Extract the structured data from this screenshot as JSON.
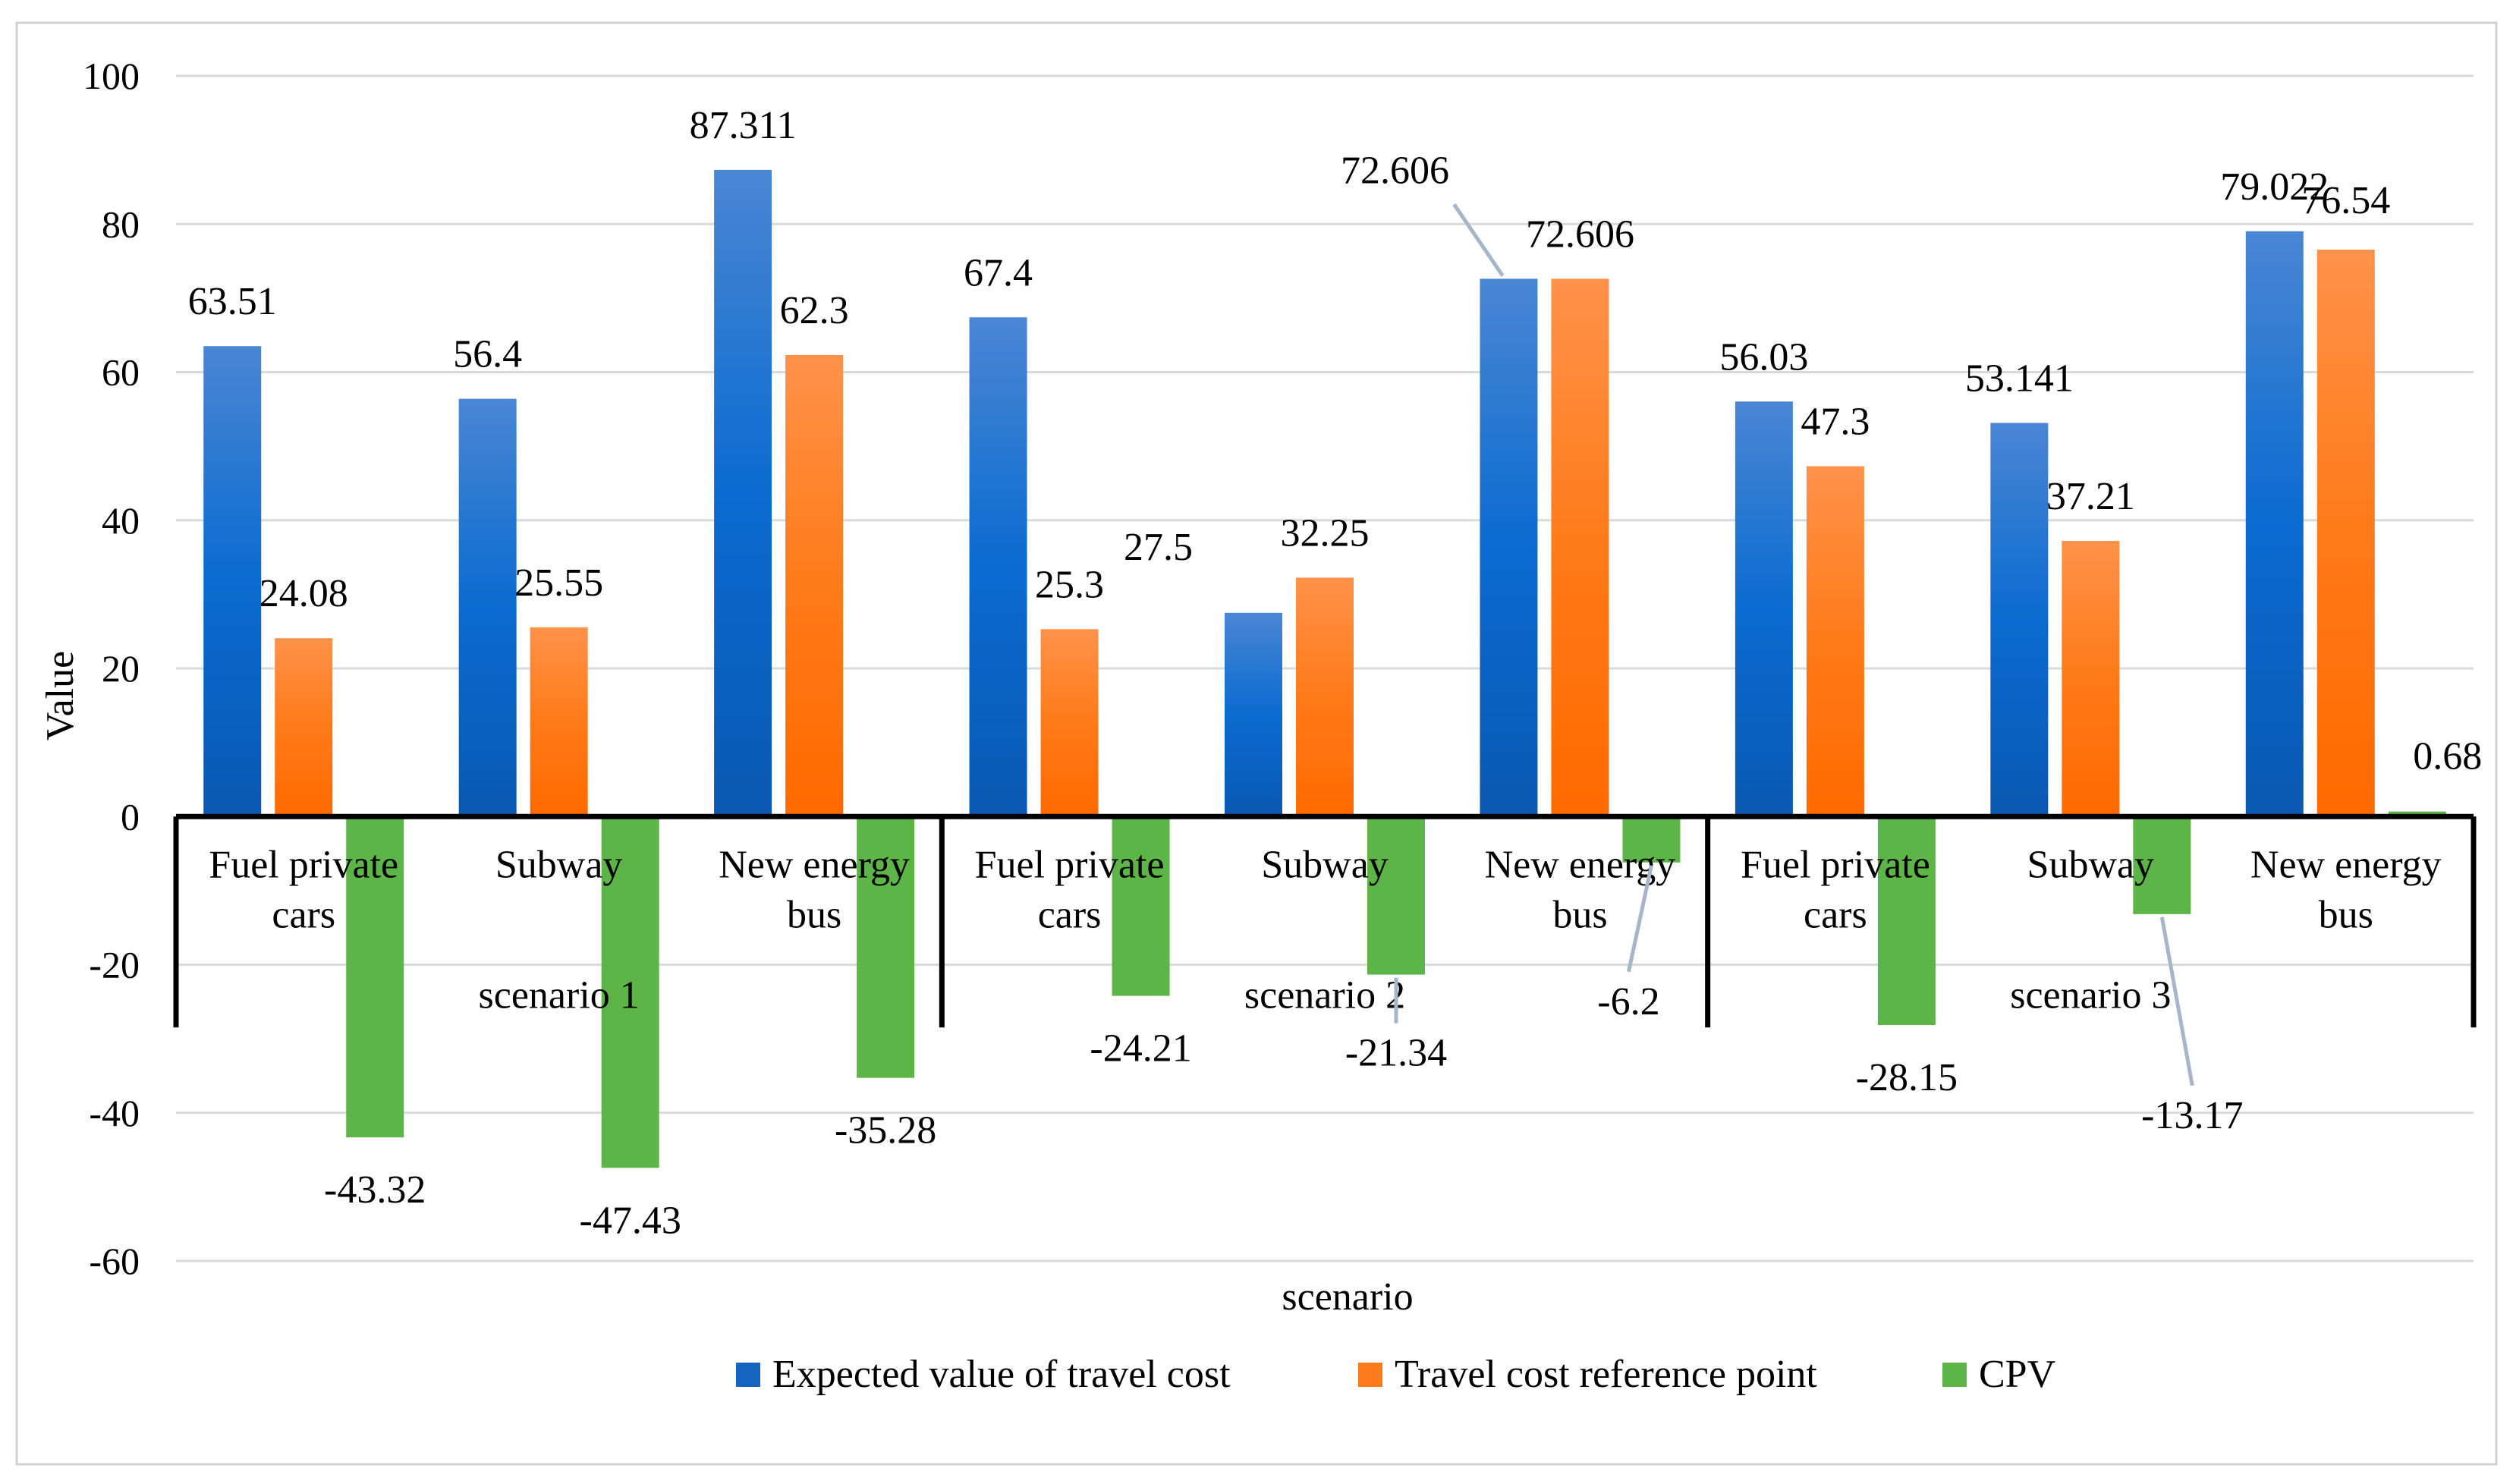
{
  "chart_data": {
    "type": "bar",
    "ylabel": "Value",
    "xlabel": "scenario",
    "ylim": [
      -60,
      100
    ],
    "yticks": [
      100,
      80,
      60,
      40,
      20,
      0,
      -20,
      -40,
      -60
    ],
    "grid": true,
    "legend_position": "bottom",
    "groups": [
      {
        "name": "scenario 1",
        "categories": [
          "Fuel private cars",
          "Subway",
          "New energy bus"
        ]
      },
      {
        "name": "scenario 2",
        "categories": [
          "Fuel private cars",
          "Subway",
          "New energy bus"
        ]
      },
      {
        "name": "scenario 3",
        "categories": [
          "Fuel private cars",
          "Subway",
          "New energy bus"
        ]
      }
    ],
    "series": [
      {
        "name": "Expected value of travel cost",
        "color": "#1565C0",
        "values": [
          63.51,
          56.4,
          87.311,
          67.4,
          27.5,
          72.606,
          56.03,
          53.141,
          79.022
        ],
        "labels": [
          "63.51",
          "56.4",
          "87.311",
          "67.4",
          "27.5",
          "72.606",
          "56.03",
          "53.141",
          "79.022"
        ]
      },
      {
        "name": "Travel cost reference point",
        "color": "#FF7A1A",
        "values": [
          24.08,
          25.55,
          62.3,
          25.3,
          32.25,
          72.606,
          47.3,
          37.21,
          76.54
        ],
        "labels": [
          "24.08",
          "25.55",
          "62.3",
          "25.3",
          "32.25",
          "72.606",
          "47.3",
          "37.21",
          "76.54"
        ]
      },
      {
        "name": "CPV",
        "color": "#5DB547",
        "values": [
          -43.32,
          -47.43,
          -35.28,
          -24.21,
          -21.34,
          -6.2,
          -28.15,
          -13.17,
          0.68
        ],
        "labels": [
          "-43.32",
          "-47.43",
          "-35.28",
          "-24.21",
          "-21.34",
          "-6.2",
          "-28.15",
          "-13.17",
          "0.68"
        ]
      }
    ]
  }
}
